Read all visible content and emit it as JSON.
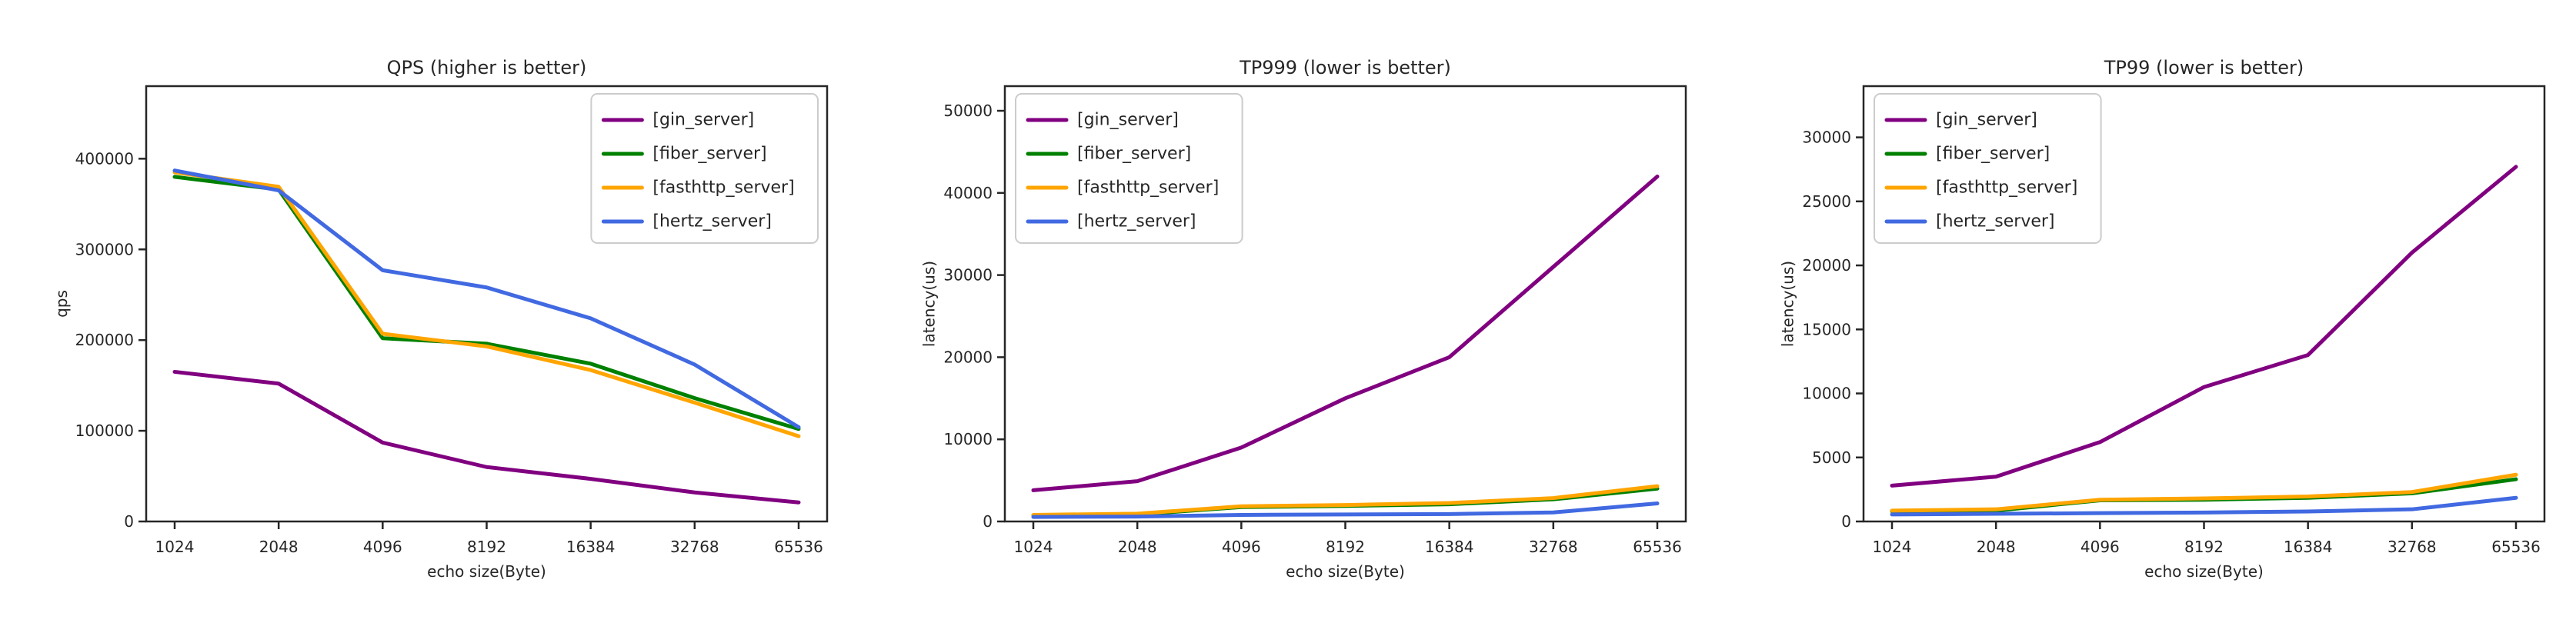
{
  "figure": {
    "background": "#ffffff",
    "x_categories": [
      "1024",
      "2048",
      "4096",
      "8192",
      "16384",
      "32768",
      "65536"
    ],
    "xlabel": "echo size(Byte)"
  },
  "chart_data": [
    {
      "name": "qps-chart",
      "type": "line",
      "title": "QPS (higher is better)",
      "xlabel": "echo size(Byte)",
      "ylabel": "qps",
      "categories": [
        "1024",
        "2048",
        "4096",
        "8192",
        "16384",
        "32768",
        "65536"
      ],
      "yticks": [
        0,
        100000,
        200000,
        300000,
        400000
      ],
      "ylim": [
        0,
        480000
      ],
      "grid": false,
      "legend_position": "upper-right",
      "series": [
        {
          "name": "[gin_server]",
          "color": "#800080",
          "values": [
            165000,
            152000,
            87000,
            60000,
            47000,
            32000,
            21000
          ]
        },
        {
          "name": "[fiber_server]",
          "color": "#008000",
          "values": [
            380000,
            366000,
            202000,
            196000,
            174000,
            136000,
            102000
          ]
        },
        {
          "name": "[fasthttp_server]",
          "color": "#FFA500",
          "values": [
            385000,
            369000,
            207000,
            193000,
            167000,
            131000,
            94000
          ]
        },
        {
          "name": "[hertz_server]",
          "color": "#4169E1",
          "values": [
            387000,
            365000,
            277000,
            258000,
            224000,
            173000,
            104000
          ]
        }
      ]
    },
    {
      "name": "tp999-chart",
      "type": "line",
      "title": "TP999 (lower is better)",
      "xlabel": "echo size(Byte)",
      "ylabel": "latency(us)",
      "categories": [
        "1024",
        "2048",
        "4096",
        "8192",
        "16384",
        "32768",
        "65536"
      ],
      "yticks": [
        0,
        10000,
        20000,
        30000,
        40000,
        50000
      ],
      "ylim": [
        0,
        53000
      ],
      "grid": false,
      "legend_position": "upper-left",
      "series": [
        {
          "name": "[gin_server]",
          "color": "#800080",
          "values": [
            3800,
            4900,
            9000,
            15000,
            20000,
            31000,
            42000
          ]
        },
        {
          "name": "[fiber_server]",
          "color": "#008000",
          "values": [
            750,
            850,
            1750,
            1900,
            2100,
            2700,
            4000
          ]
        },
        {
          "name": "[fasthttp_server]",
          "color": "#FFA500",
          "values": [
            800,
            950,
            1850,
            2000,
            2250,
            2850,
            4300
          ]
        },
        {
          "name": "[hertz_server]",
          "color": "#4169E1",
          "values": [
            550,
            600,
            800,
            850,
            900,
            1100,
            2200
          ]
        }
      ]
    },
    {
      "name": "tp99-chart",
      "type": "line",
      "title": "TP99 (lower is better)",
      "xlabel": "echo size(Byte)",
      "ylabel": "latency(us)",
      "categories": [
        "1024",
        "2048",
        "4096",
        "8192",
        "16384",
        "32768",
        "65536"
      ],
      "yticks": [
        0,
        5000,
        10000,
        15000,
        20000,
        25000,
        30000
      ],
      "ylim": [
        0,
        34000
      ],
      "grid": false,
      "legend_position": "upper-left",
      "series": [
        {
          "name": "[gin_server]",
          "color": "#800080",
          "values": [
            2800,
            3500,
            6200,
            10500,
            13000,
            21000,
            27700
          ]
        },
        {
          "name": "[fiber_server]",
          "color": "#008000",
          "values": [
            800,
            850,
            1650,
            1700,
            1850,
            2200,
            3300
          ]
        },
        {
          "name": "[fasthttp_server]",
          "color": "#FFA500",
          "values": [
            850,
            950,
            1700,
            1800,
            1950,
            2300,
            3650
          ]
        },
        {
          "name": "[hertz_server]",
          "color": "#4169E1",
          "values": [
            550,
            600,
            650,
            700,
            780,
            950,
            1850
          ]
        }
      ]
    }
  ]
}
